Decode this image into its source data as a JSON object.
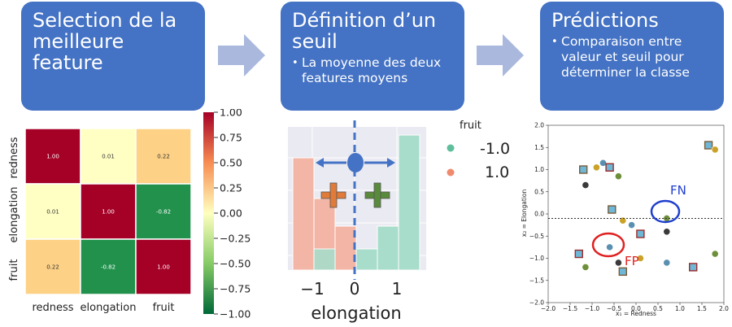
{
  "steps": [
    {
      "title": "Selection de la meilleure feature",
      "bullet": ""
    },
    {
      "title": "Définition d’un seuil",
      "bullet": "La moyenne des deux features moyens"
    },
    {
      "title": "Prédictions",
      "bullet": "Comparaison entre valeur et seuil pour déterminer la classe"
    }
  ],
  "heatmap": {
    "rows": [
      "redness",
      "elongation",
      "fruit"
    ],
    "cols": [
      "redness",
      "elongation",
      "fruit"
    ],
    "values": [
      [
        1.0,
        0.01,
        0.22
      ],
      [
        0.01,
        1.0,
        -0.82
      ],
      [
        0.22,
        -0.82,
        1.0
      ]
    ],
    "cell_labels": [
      [
        "1.00",
        "0.01",
        "0.22"
      ],
      [
        "0.01",
        "1.00",
        "-0.82"
      ],
      [
        "0.22",
        "-0.82",
        "1.00"
      ]
    ],
    "colorbar_ticks": [
      "1.00",
      "0.75",
      "0.50",
      "0.25",
      "0.00",
      "−0.25",
      "−0.50",
      "−0.75",
      "−1.00"
    ],
    "colors": {
      "pos": "#a50026",
      "mid": "#ffffbf",
      "neg": "#1a7a3d"
    }
  },
  "histogram": {
    "xlabel": "elongation",
    "xticks": [
      "−1",
      "0",
      "1"
    ],
    "legend_title": "fruit",
    "legend": [
      {
        "label": "-1.0",
        "color": "#5fbf9c"
      },
      {
        "label": "1.0",
        "color": "#f08a6e"
      }
    ],
    "colors": {
      "class_pos": "#f3b6a6",
      "class_neg": "#a8dccb",
      "threshold": "#4472c4",
      "plus_orange": "#e07b39",
      "plus_green": "#5a8a3c"
    }
  },
  "scatter": {
    "xlabel": "x₁ = Redness",
    "ylabel": "x₂ = Elongation",
    "xticks": [
      "−2.0",
      "−1.5",
      "−1.0",
      "−0.5",
      "0.0",
      "0.5",
      "1.0",
      "1.5",
      "2.0"
    ],
    "yticks": [
      "2.0",
      "1.5",
      "1.0",
      "0.5",
      "0.0",
      "−0.5",
      "−1.0",
      "−1.5",
      "−2.0"
    ],
    "threshold_y": -0.1,
    "annotations": [
      {
        "label": "FN",
        "color": "#1f3fcf"
      },
      {
        "label": "FP",
        "color": "#e02020"
      }
    ]
  },
  "chart_data": {
    "type": "scatter",
    "xlabel": "x₁ = Redness",
    "ylabel": "x₂ = Elongation",
    "xlim": [
      -2.0,
      2.0
    ],
    "ylim": [
      -2.0,
      2.0
    ],
    "threshold": -0.1,
    "points": [
      {
        "x": -1.2,
        "y": 1.0
      },
      {
        "x": -0.9,
        "y": 1.05
      },
      {
        "x": -0.75,
        "y": 1.15
      },
      {
        "x": -0.6,
        "y": 1.05
      },
      {
        "x": -0.4,
        "y": 0.85
      },
      {
        "x": -1.15,
        "y": 0.65
      },
      {
        "x": -0.55,
        "y": 0.1
      },
      {
        "x": -0.3,
        "y": -0.15
      },
      {
        "x": -0.1,
        "y": -0.25
      },
      {
        "x": 0.1,
        "y": -0.45
      },
      {
        "x": 0.7,
        "y": -0.1
      },
      {
        "x": 0.7,
        "y": -0.4
      },
      {
        "x": 1.65,
        "y": 1.55
      },
      {
        "x": 1.8,
        "y": 1.45
      },
      {
        "x": -0.6,
        "y": -0.75
      },
      {
        "x": -1.3,
        "y": -0.9
      },
      {
        "x": -1.15,
        "y": -1.2
      },
      {
        "x": -0.4,
        "y": -1.1
      },
      {
        "x": -0.3,
        "y": -1.3
      },
      {
        "x": 0.1,
        "y": -1.0
      },
      {
        "x": 0.7,
        "y": -1.1
      },
      {
        "x": 1.3,
        "y": -1.2
      },
      {
        "x": 1.8,
        "y": -0.9
      }
    ]
  }
}
